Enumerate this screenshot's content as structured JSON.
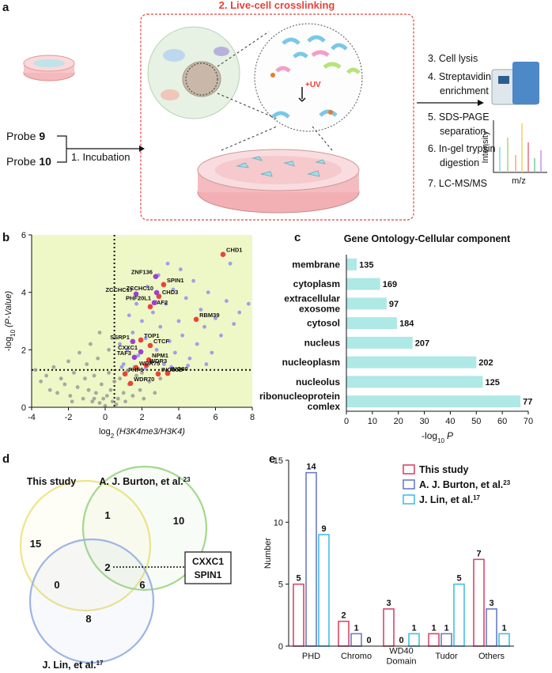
{
  "figure": {
    "panel_labels": [
      "a",
      "b",
      "c",
      "d",
      "e"
    ],
    "workflow": {
      "box_title": "2. Live-cell crosslinking",
      "probes": [
        {
          "text": "Probe",
          "number": "9"
        },
        {
          "text": "Probe",
          "number": "10"
        }
      ],
      "incubation": "1. Incubation",
      "uv": "+UV",
      "steps": [
        "3. Cell lysis",
        "4. Streptavidin",
        "enrichment",
        "5. SDS-PAGE",
        "separation",
        "6. In-gel trypsin",
        "digestion",
        "7. LC-MS/MS"
      ],
      "spectrum_y": "Intensity",
      "spectrum_x": "m/z"
    },
    "venn": {
      "sets": [
        {
          "name": "This study",
          "color": "#efe48a"
        },
        {
          "name": "A. J. Burton, et al.",
          "ref": "23",
          "color": "#a3d88c"
        },
        {
          "name": "J. Lin, et al.",
          "ref": "17",
          "color": "#9db5e2"
        }
      ],
      "counts": [
        15,
        1,
        10,
        2,
        0,
        6,
        8
      ],
      "shared_genes": [
        "CXXC1",
        "SPIN1"
      ]
    }
  },
  "chart_data": [
    {
      "type": "scatter",
      "xlabel": {
        "text": "log",
        "sub": "2",
        "italic": "(H3K4me3/H3K4)"
      },
      "ylabel": {
        "text": "-log",
        "sub": "10",
        "italic": "(P-Value)"
      },
      "background": "#eef7c6",
      "xlim": [
        -4,
        8
      ],
      "xticks": [
        -4,
        -2,
        0,
        2,
        4,
        6,
        8
      ],
      "ylim": [
        0,
        6
      ],
      "yticks": [
        0,
        2,
        4,
        6
      ],
      "thresholds": {
        "x": 0.5,
        "y": 1.3
      },
      "series": [
        {
          "color": "#9a9a9a",
          "x": [
            -3.5,
            -3.2,
            -3,
            -2.8,
            -2.6,
            -2.4,
            -2.2,
            -2,
            -1.9,
            -1.7,
            -1.5,
            -1.4,
            -1.2,
            -1.1,
            -1,
            -0.9,
            -0.8,
            -0.7,
            -0.6,
            -0.5,
            -0.4,
            -0.3,
            -0.2,
            -0.1,
            0,
            0.1,
            0.2,
            0.3,
            0.4,
            0.5,
            0.7,
            0.8,
            1,
            1.1,
            1.3,
            1.5,
            1.7,
            1.9,
            2.1,
            2.4,
            2.7,
            3,
            -0.3,
            0.2,
            -3.8,
            2,
            0.6,
            -0.6,
            1.2,
            -1.8
          ],
          "values": [
            0.9,
            1.1,
            0.6,
            1.4,
            0.5,
            1,
            0.8,
            1.6,
            0.4,
            1.2,
            0.7,
            1.9,
            0.3,
            1,
            1.5,
            0.6,
            2.2,
            0.2,
            1.1,
            0.5,
            1.7,
            0.15,
            0.8,
            0.3,
            0.05,
            0.4,
            1.2,
            0.6,
            0.2,
            0.9,
            0.3,
            1,
            0.5,
            0.2,
            0.8,
            0.4,
            1.1,
            0.6,
            0.3,
            0.9,
            0.5,
            1,
            2.6,
            2,
            1.3,
            1.2,
            0.1,
            0.3,
            1.25,
            0.2
          ]
        },
        {
          "color": "#8f8ff0",
          "x": [
            1,
            1.2,
            1.5,
            1.8,
            2,
            2.2,
            2.5,
            2.6,
            2.8,
            3,
            3.2,
            3.3,
            3.5,
            3.7,
            3.8,
            4,
            4.2,
            4.4,
            4.6,
            4.8,
            5,
            5.2,
            5.4,
            5.6,
            5.8,
            6,
            6.3,
            6.6,
            7,
            7.3,
            7.8,
            0.8,
            1.3,
            1.7,
            2.3,
            2.9,
            3.4,
            4.1,
            6.8,
            0.9,
            1.6,
            2.2,
            3.6,
            4.5,
            5.5
          ],
          "values": [
            1.5,
            2,
            2.6,
            1.8,
            3,
            2.4,
            1.6,
            3.3,
            2,
            2.8,
            1.5,
            3.6,
            2.3,
            4.1,
            1.9,
            3,
            2.5,
            3.8,
            1.7,
            4.4,
            2.2,
            3.4,
            2.8,
            4,
            1.9,
            3.1,
            2.5,
            3.7,
            2.9,
            3.3,
            3.6,
            2.2,
            3.2,
            3.6,
            4.2,
            4.6,
            5,
            4.8,
            5,
            1.4,
            1.4,
            1.35,
            1.4,
            1.45,
            1.5
          ]
        },
        {
          "color": "#e8443a",
          "labels": [
            "CHD1",
            "SPIN1",
            "CHD3",
            "TAF2",
            "RBM39",
            "TOP1",
            "CTCF",
            "NPM1",
            "WDR3",
            "WDR75",
            "PHF6",
            "INO80B",
            "INO80",
            "WDR70"
          ],
          "x": [
            6.41,
            3.18,
            2.92,
            2.45,
            4.95,
            1.94,
            2.45,
            2.37,
            2.24,
            1.68,
            1.08,
            2.88,
            3.4,
            1.38
          ],
          "values": [
            5.32,
            4.27,
            3.86,
            3.5,
            3.06,
            2.34,
            2.15,
            1.65,
            1.46,
            1.38,
            1.16,
            1.16,
            1.18,
            0.83
          ]
        },
        {
          "color": "#9b3fd6",
          "labels": [
            "ZNF136",
            "ZCCHC17",
            "ZCCHC10",
            "PHF20L1",
            "SSRP1",
            "CXXC1",
            "TAF3"
          ],
          "x": [
            2.75,
            1.68,
            2.8,
            2.67,
            1.5,
            1.94,
            1.59
          ],
          "values": [
            4.55,
            3.94,
            3.99,
            3.64,
            2.29,
            1.93,
            1.74
          ]
        }
      ]
    },
    {
      "type": "bar",
      "orientation": "horizontal",
      "title": "Gene Ontology-Cellular component",
      "categories": [
        [
          "membrane"
        ],
        [
          "cytoplasm"
        ],
        [
          "extracellular",
          "exosome"
        ],
        [
          "cytosol"
        ],
        [
          "nucleus"
        ],
        [
          "nucleoplasm"
        ],
        [
          "nucleolus"
        ],
        [
          "ribonucleoprotein",
          "comlex"
        ]
      ],
      "values": [
        4,
        13,
        15.5,
        19.5,
        25.5,
        50,
        52.5,
        67
      ],
      "counts": [
        135,
        169,
        97,
        184,
        207,
        202,
        125,
        77
      ],
      "color": "#aee9e5",
      "xlim": [
        0,
        70
      ],
      "xticks": [
        0,
        10,
        20,
        30,
        40,
        50,
        60,
        70
      ],
      "xlabel": {
        "text": "-log",
        "sub": "10",
        "italic": "P"
      }
    },
    {
      "type": "bar",
      "categories": [
        [
          "PHD"
        ],
        [
          "Chromo"
        ],
        [
          "WD40",
          "Domain"
        ],
        [
          "Tudor"
        ],
        [
          "Others"
        ]
      ],
      "series": [
        {
          "name": "This study",
          "color": "#d9476b",
          "values": [
            5,
            2,
            3,
            1,
            7
          ]
        },
        {
          "name": "A. J. Burton, et al.",
          "ref": "23",
          "color": "#6b7cc8",
          "values": [
            14,
            1,
            0,
            1,
            3
          ]
        },
        {
          "name": "J. Lin, et al.",
          "ref": "17",
          "color": "#46bde9",
          "values": [
            9,
            0,
            1,
            5,
            1
          ]
        }
      ],
      "ylim": [
        0,
        15
      ],
      "yticks": [
        0,
        5,
        10,
        15
      ],
      "ylabel": "Number"
    }
  ]
}
